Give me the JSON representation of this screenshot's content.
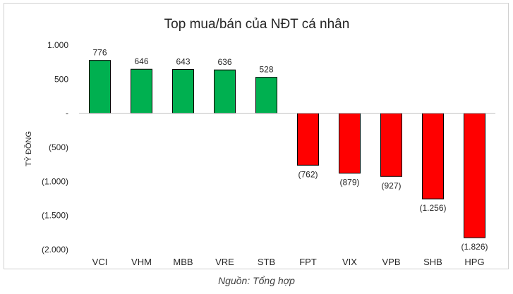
{
  "chart_data": {
    "type": "bar",
    "title": "Top mua/bán của NĐT cá nhân",
    "ylabel": "TỶ ĐỒNG",
    "xlabel": "",
    "categories": [
      "VCI",
      "VHM",
      "MBB",
      "VRE",
      "STB",
      "FPT",
      "VIX",
      "VPB",
      "SHB",
      "HPG"
    ],
    "values": [
      776,
      646,
      643,
      636,
      528,
      -762,
      -879,
      -927,
      -1256,
      -1826
    ],
    "data_labels": [
      "776",
      "646",
      "643",
      "636",
      "528",
      "(762)",
      "(879)",
      "(927)",
      "(1.256)",
      "(1.826)"
    ],
    "yticks": [
      1000,
      500,
      0,
      -500,
      -1000,
      -1500,
      -2000
    ],
    "ytick_labels": [
      "1.000",
      "500",
      "-",
      "(500)",
      "(1.000)",
      "(1.500)",
      "(2.000)"
    ],
    "ylim": [
      -2000,
      1000
    ],
    "grid": false,
    "legend": "none",
    "colors": {
      "positive": "#00b050",
      "negative": "#ff0000",
      "outline": "#000000"
    }
  },
  "source_note": "Nguồn: Tổng hợp"
}
